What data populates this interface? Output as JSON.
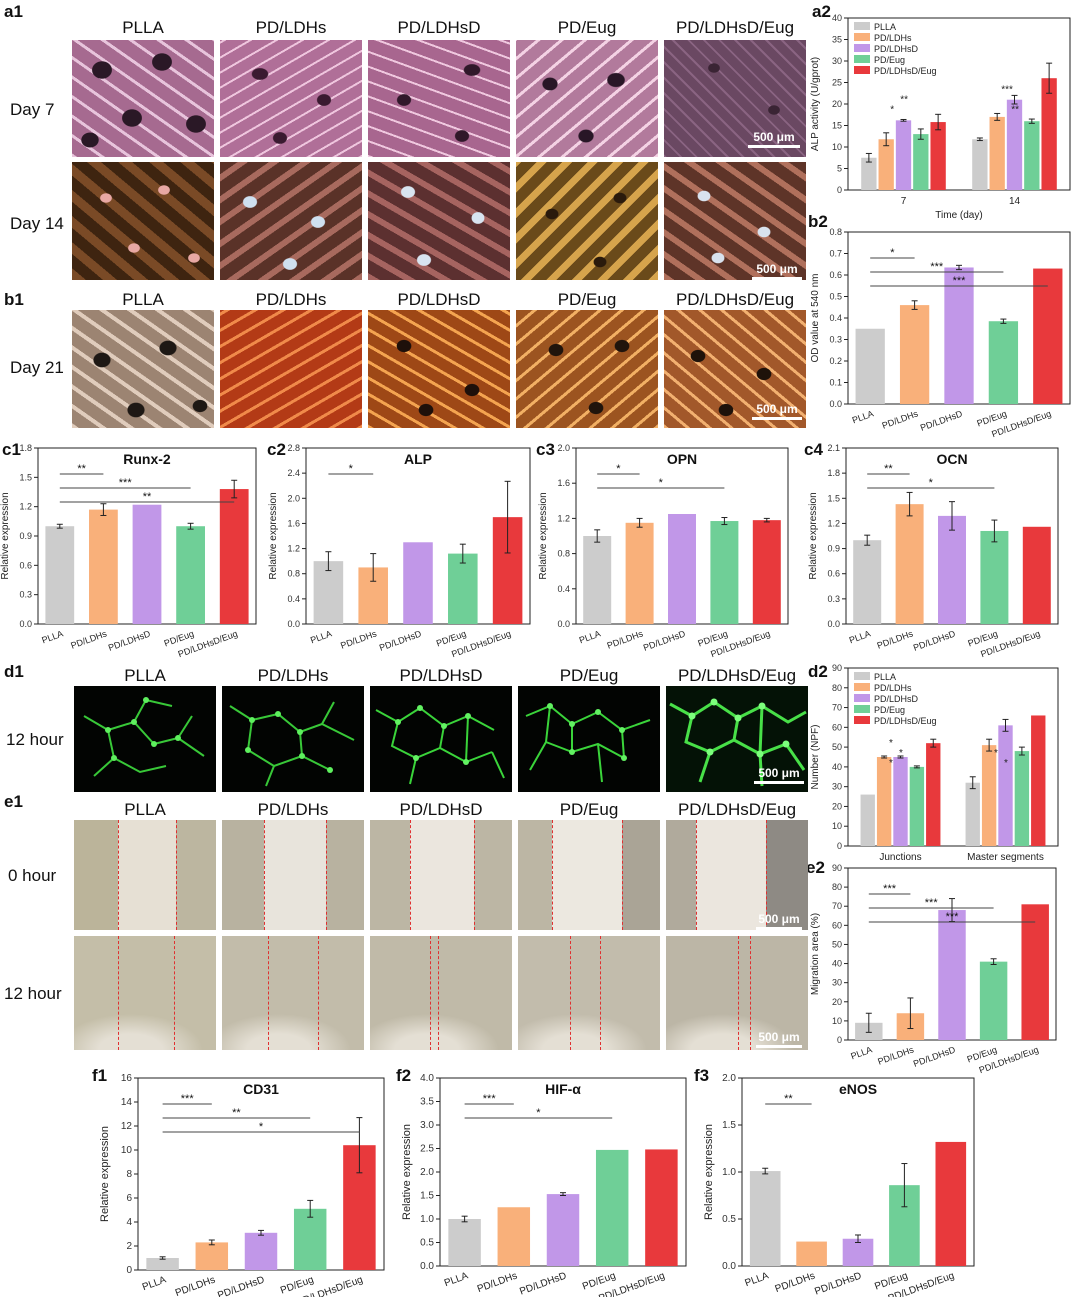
{
  "panel_labels": {
    "a1": "a1",
    "a2": "a2",
    "b1": "b1",
    "b2": "b2",
    "c1": "c1",
    "c2": "c2",
    "c3": "c3",
    "c4": "c4",
    "d1": "d1",
    "d2": "d2",
    "e1": "e1",
    "e2": "e2",
    "f1": "f1",
    "f2": "f2",
    "f3": "f3"
  },
  "groups": [
    "PLLA",
    "PD/LDHs",
    "PD/LDHsD",
    "PD/Eug",
    "PD/LDHsD/Eug"
  ],
  "colors": {
    "PLLA": "#cccccc",
    "PD/LDHs": "#f9b07a",
    "PD/LDHsD": "#c197e8",
    "PD/Eug": "#6fcf97",
    "PD/LDHsD/Eug": "#e8393c"
  },
  "row_labels": {
    "a_day7": "Day 7",
    "a_day14": "Day 14",
    "b_day21": "Day 21",
    "d_12h": "12 hour",
    "e_0h": "0 hour",
    "e_12h": "12 hour"
  },
  "scale_bar": "500 μm",
  "chart_data": [
    {
      "id": "a2",
      "type": "bar",
      "categories": [
        "7",
        "14"
      ],
      "series": [
        {
          "name": "PLLA",
          "values": [
            7.5,
            11.8
          ],
          "err": [
            1.0,
            0.3
          ]
        },
        {
          "name": "PD/LDHs",
          "values": [
            11.8,
            17.0
          ],
          "err": [
            1.5,
            0.8
          ]
        },
        {
          "name": "PD/LDHsD",
          "values": [
            16.2,
            21.0
          ],
          "err": [
            0.2,
            1.0
          ]
        },
        {
          "name": "PD/Eug",
          "values": [
            13.0,
            16.0
          ],
          "err": [
            1.2,
            0.5
          ]
        },
        {
          "name": "PD/LDHsD/Eug",
          "values": [
            15.8,
            26.0
          ],
          "err": [
            1.8,
            3.5
          ]
        }
      ],
      "xlabel": "Time (day)",
      "ylabel": "ALP activity (U/gprot)",
      "ylim": [
        0,
        40
      ],
      "yticks": [
        0,
        5,
        10,
        15,
        20,
        25,
        30,
        35,
        40
      ],
      "legend": "top-left",
      "annotations": [
        "*",
        "**",
        "***",
        "**"
      ]
    },
    {
      "id": "b2",
      "type": "bar",
      "categories": [
        "PLLA",
        "PD/LDHs",
        "PD/LDHsD",
        "PD/Eug",
        "PD/LDHsD/Eug"
      ],
      "values": [
        0.35,
        0.46,
        0.635,
        0.385,
        0.63
      ],
      "err": [
        0.0,
        0.02,
        0.01,
        0.01,
        0.0
      ],
      "ylabel": "OD value at 540 nm",
      "ylim": [
        0,
        0.8
      ],
      "yticks": [
        "0.0",
        "0.1",
        "0.2",
        "0.3",
        "0.4",
        "0.5",
        "0.6",
        "0.7",
        "0.8"
      ],
      "annotations": [
        "*",
        "***",
        "***"
      ]
    },
    {
      "id": "c1",
      "type": "bar",
      "title": "Runx-2",
      "categories": [
        "PLLA",
        "PD/LDHs",
        "PD/LDHsD",
        "PD/Eug",
        "PD/LDHsD/Eug"
      ],
      "values": [
        1.0,
        1.17,
        1.22,
        1.0,
        1.38
      ],
      "err": [
        0.02,
        0.06,
        0.0,
        0.03,
        0.09
      ],
      "ylabel": "Relative expression",
      "ylim": [
        0,
        1.8
      ],
      "yticks": [
        "0.0",
        "0.3",
        "0.6",
        "0.9",
        "1.2",
        "1.5",
        "1.8"
      ],
      "annotations": [
        "**",
        "***",
        "**"
      ]
    },
    {
      "id": "c2",
      "type": "bar",
      "title": "ALP",
      "categories": [
        "PLLA",
        "PD/LDHs",
        "PD/LDHsD",
        "PD/Eug",
        "PD/LDHsD/Eug"
      ],
      "values": [
        1.0,
        0.9,
        1.3,
        1.12,
        1.7
      ],
      "err": [
        0.15,
        0.22,
        0.0,
        0.15,
        0.57
      ],
      "ylabel": "Relative expression",
      "ylim": [
        0,
        2.8
      ],
      "yticks": [
        "0.0",
        "0.4",
        "0.8",
        "1.2",
        "1.6",
        "2.0",
        "2.4",
        "2.8"
      ],
      "annotations": [
        "*"
      ]
    },
    {
      "id": "c3",
      "type": "bar",
      "title": "OPN",
      "categories": [
        "PLLA",
        "PD/LDHs",
        "PD/LDHsD",
        "PD/Eug",
        "PD/LDHsD/Eug"
      ],
      "values": [
        1.0,
        1.15,
        1.25,
        1.17,
        1.18
      ],
      "err": [
        0.07,
        0.05,
        0.0,
        0.04,
        0.02
      ],
      "ylabel": "Relative expression",
      "ylim": [
        0,
        2.0
      ],
      "yticks": [
        "0.0",
        "0.4",
        "0.8",
        "1.2",
        "1.6",
        "2.0"
      ],
      "annotations": [
        "*",
        "*"
      ]
    },
    {
      "id": "c4",
      "type": "bar",
      "title": "OCN",
      "categories": [
        "PLLA",
        "PD/LDHs",
        "PD/LDHsD",
        "PD/Eug",
        "PD/LDHsD/Eug"
      ],
      "values": [
        1.0,
        1.43,
        1.29,
        1.11,
        1.16
      ],
      "err": [
        0.06,
        0.14,
        0.17,
        0.13,
        0.0
      ],
      "ylabel": "Relative expression",
      "ylim": [
        0,
        2.1
      ],
      "yticks": [
        "0.0",
        "0.3",
        "0.6",
        "0.9",
        "1.2",
        "1.5",
        "1.8",
        "2.1"
      ],
      "annotations": [
        "**",
        "*"
      ]
    },
    {
      "id": "d2",
      "type": "bar",
      "categories": [
        "Junctions",
        "Master segments"
      ],
      "series": [
        {
          "name": "PLLA",
          "values": [
            26,
            32
          ],
          "err": [
            0,
            3
          ]
        },
        {
          "name": "PD/LDHs",
          "values": [
            45,
            51
          ],
          "err": [
            0.5,
            3
          ]
        },
        {
          "name": "PD/LDHsD",
          "values": [
            45,
            61
          ],
          "err": [
            0.5,
            3
          ]
        },
        {
          "name": "PD/Eug",
          "values": [
            40,
            48
          ],
          "err": [
            0.5,
            2
          ]
        },
        {
          "name": "PD/LDHsD/Eug",
          "values": [
            52,
            66
          ],
          "err": [
            2,
            0
          ]
        }
      ],
      "ylabel": "Number (NPF)",
      "ylim": [
        0,
        90
      ],
      "yticks": [
        0,
        10,
        20,
        30,
        40,
        50,
        60,
        70,
        80,
        90
      ],
      "legend": "top-left",
      "annotations": [
        "*",
        "*",
        "*",
        "*",
        "*"
      ]
    },
    {
      "id": "e2",
      "type": "bar",
      "categories": [
        "PLLA",
        "PD/LDHs",
        "PD/LDHsD",
        "PD/Eug",
        "PD/LDHsD/Eug"
      ],
      "values": [
        9,
        14,
        68,
        41,
        71
      ],
      "err": [
        5,
        8,
        6,
        1.5,
        0
      ],
      "ylabel": "Migration area (%)",
      "ylim": [
        0,
        90
      ],
      "yticks": [
        0,
        10,
        20,
        30,
        40,
        50,
        60,
        70,
        80,
        90
      ],
      "annotations": [
        "***",
        "***",
        "***"
      ]
    },
    {
      "id": "f1",
      "type": "bar",
      "title": "CD31",
      "categories": [
        "PLLA",
        "PD/LDHs",
        "PD/LDHsD",
        "PD/Eug",
        "PD/LDHsD/Eug"
      ],
      "values": [
        1.0,
        2.3,
        3.1,
        5.1,
        10.4
      ],
      "err": [
        0.1,
        0.2,
        0.2,
        0.7,
        2.3
      ],
      "ylabel": "Relative expression",
      "ylim": [
        0,
        16
      ],
      "yticks": [
        0,
        2,
        4,
        6,
        8,
        10,
        12,
        14,
        16
      ],
      "annotations": [
        "***",
        "**",
        "*"
      ]
    },
    {
      "id": "f2",
      "type": "bar",
      "title": "HIF-α",
      "categories": [
        "PLLA",
        "PD/LDHs",
        "PD/LDHsD",
        "PD/Eug",
        "PD/LDHsD/Eug"
      ],
      "values": [
        1.0,
        1.25,
        1.53,
        2.47,
        2.48
      ],
      "err": [
        0.06,
        0.0,
        0.03,
        0.0,
        0.0
      ],
      "ylabel": "Relative expression",
      "ylim": [
        0,
        4.0
      ],
      "yticks": [
        "0.0",
        "0.5",
        "1.0",
        "1.5",
        "2.0",
        "2.5",
        "3.0",
        "3.5",
        "4.0"
      ],
      "annotations": [
        "***",
        "*"
      ]
    },
    {
      "id": "f3",
      "type": "bar",
      "title": "eNOS",
      "categories": [
        "PLLA",
        "PD/LDHs",
        "PD/LDHsD",
        "PD/Eug",
        "PD/LDHsD/Eug"
      ],
      "values": [
        1.01,
        0.26,
        0.29,
        0.86,
        1.32
      ],
      "err": [
        0.03,
        0.0,
        0.04,
        0.23,
        0.0
      ],
      "ylabel": "Relative expression",
      "ylim": [
        0,
        2.0
      ],
      "yticks": [
        "0.0",
        "0.5",
        "1.0",
        "1.5",
        "2.0"
      ],
      "annotations": [
        "**"
      ]
    }
  ]
}
